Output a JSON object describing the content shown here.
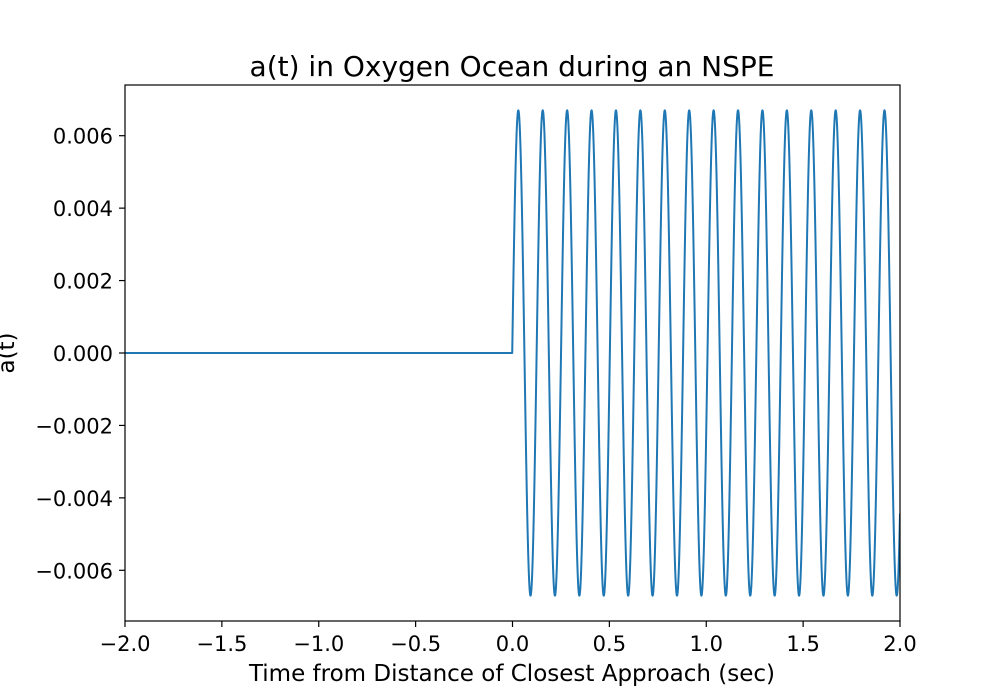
{
  "chart_data": {
    "type": "line",
    "title": "a(t) in Oxygen Ocean during an NSPE",
    "xlabel": "Time from Distance of Closest Approach (sec)",
    "ylabel": "a(t)",
    "xlim": [
      -2.0,
      2.0
    ],
    "ylim": [
      -0.0074,
      0.0074
    ],
    "x_ticks": [
      -2.0,
      -1.5,
      -1.0,
      -0.5,
      0.0,
      0.5,
      1.0,
      1.5,
      2.0
    ],
    "x_tick_labels": [
      "−2.0",
      "−1.5",
      "−1.0",
      "−0.5",
      "0.0",
      "0.5",
      "1.0",
      "1.5",
      "2.0"
    ],
    "y_ticks": [
      0.006,
      0.004,
      0.002,
      0.0,
      -0.002,
      -0.004,
      -0.006
    ],
    "y_tick_labels": [
      "0.006",
      "0.004",
      "0.002",
      "0.000",
      "−0.002",
      "−0.004",
      "−0.006"
    ],
    "grid": false,
    "legend": "none",
    "color": "#1f77b4",
    "series": [
      {
        "description_free": true,
        "pre_onset": {
          "x_range": [
            -2.0,
            0.0
          ],
          "y": 0.0
        },
        "oscillation": {
          "x_range": [
            0.0,
            2.0
          ],
          "amplitude": 0.0067,
          "period": 0.126,
          "first_peak_x": 0.03
        }
      }
    ]
  }
}
